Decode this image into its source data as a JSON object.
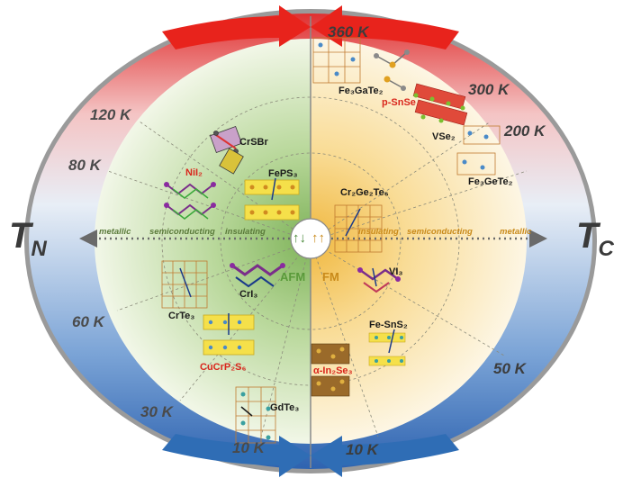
{
  "axis_labels": {
    "left": "T",
    "left_sub": "N",
    "right": "T",
    "right_sub": "C"
  },
  "center_symbols": {
    "afm": "↑↓",
    "fm": "↑↑"
  },
  "order_labels": {
    "left": "AFM",
    "right": "FM"
  },
  "bands": {
    "left": [
      "metallic",
      "semiconducting",
      "insulating"
    ],
    "right": [
      "insulating",
      "semiconducting",
      "metallic"
    ]
  },
  "temperatures_left": [
    "120 K",
    "80 K",
    "60 K",
    "30 K",
    "10 K"
  ],
  "temperatures_right": [
    "360 K",
    "300 K",
    "200 K",
    "50 K",
    "10 K"
  ],
  "materials_left": [
    {
      "name": "CrSBr",
      "red": false
    },
    {
      "name": "NiI₂",
      "red": true
    },
    {
      "name": "FePS₃",
      "red": false
    },
    {
      "name": "CrI₃",
      "red": false
    },
    {
      "name": "CrTe₃",
      "red": false
    },
    {
      "name": "CuCrP₂S₆",
      "red": true
    },
    {
      "name": "GdTe₃",
      "red": false
    }
  ],
  "materials_right": [
    {
      "name": "Fe₃GaTe₂",
      "red": false
    },
    {
      "name": "p-SnSe",
      "red": true
    },
    {
      "name": "VSe₂",
      "red": false
    },
    {
      "name": "Fe₃GeTe₂",
      "red": false
    },
    {
      "name": "Cr₂Ge₂Te₆",
      "red": false
    },
    {
      "name": "VI₃",
      "red": false
    },
    {
      "name": "Fe-SnS₂",
      "red": false
    },
    {
      "name": "α-In₂Se₃",
      "red": true
    }
  ],
  "colors": {
    "afm_green": "#9cc47a",
    "fm_yellow": "#f3c45a",
    "arrow_red": "#e8231c",
    "arrow_blue": "#2f6db5",
    "ring_red": "#e33a3a",
    "ring_blue": "#4f86c6"
  }
}
